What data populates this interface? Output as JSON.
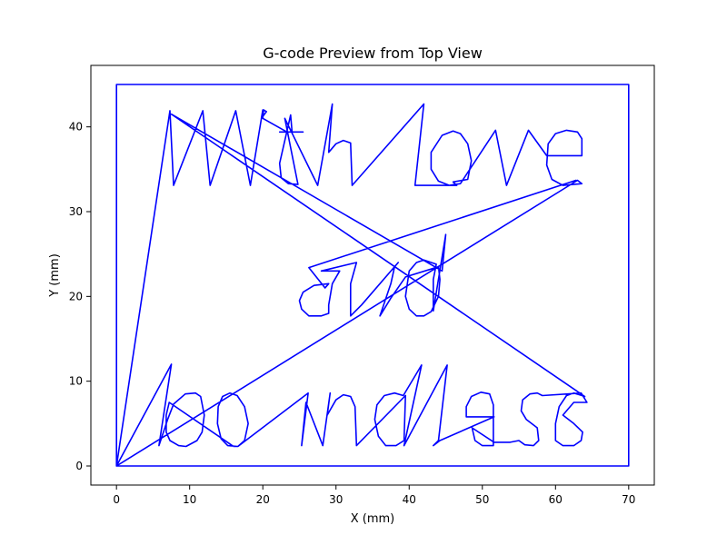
{
  "chart_data": {
    "type": "line",
    "title": "G-code Preview from Top View",
    "xlabel": "X (mm)",
    "ylabel": "Y (mm)",
    "xlim": [
      -3.5,
      73.5
    ],
    "ylim": [
      -2.25,
      47.25
    ],
    "x_ticks": [
      0,
      10,
      20,
      30,
      40,
      50,
      60,
      70
    ],
    "y_ticks": [
      0,
      10,
      20,
      30,
      40
    ],
    "grid": false,
    "line_color": "#0000ff",
    "series": [
      {
        "description": "toolpath",
        "points": [
          [
            0,
            0
          ],
          [
            0,
            45
          ],
          [
            70,
            45
          ],
          [
            70,
            0
          ],
          [
            0,
            0
          ],
          [
            7.3,
            41.9
          ],
          [
            7.8,
            33.1
          ],
          [
            11.8,
            41.9
          ],
          [
            12.8,
            33.1
          ],
          [
            16.3,
            41.9
          ],
          [
            18.3,
            33.1
          ],
          [
            20,
            42
          ],
          [
            19.8,
            41
          ],
          [
            20.5,
            41.8
          ],
          [
            20.1,
            42
          ],
          [
            20,
            41
          ],
          [
            23.3,
            39.4
          ],
          [
            22.3,
            39.4
          ],
          [
            25.5,
            39.4
          ],
          [
            24,
            39.4
          ],
          [
            23.8,
            41.4
          ],
          [
            22.3,
            35.7
          ],
          [
            22.5,
            34
          ],
          [
            23.5,
            33.3
          ],
          [
            24.8,
            33.2
          ],
          [
            23,
            41
          ],
          [
            27.5,
            33.1
          ],
          [
            29.5,
            42.7
          ],
          [
            29,
            37
          ],
          [
            30,
            38
          ],
          [
            31,
            38.4
          ],
          [
            32,
            38.1
          ],
          [
            32.2,
            33.1
          ],
          [
            42,
            42.7
          ],
          [
            40.8,
            33.1
          ],
          [
            46.5,
            33.1
          ],
          [
            46,
            33.5
          ],
          [
            48,
            33.8
          ],
          [
            48.5,
            36
          ],
          [
            48,
            38
          ],
          [
            47,
            39.2
          ],
          [
            46,
            39.5
          ],
          [
            44.5,
            39
          ],
          [
            43,
            37
          ],
          [
            43,
            35
          ],
          [
            44,
            33.6
          ],
          [
            45.5,
            33.1
          ],
          [
            47,
            33.3
          ],
          [
            51.8,
            39.6
          ],
          [
            53.3,
            33.1
          ],
          [
            56.3,
            39.6
          ],
          [
            58.8,
            36.6
          ],
          [
            63.6,
            36.6
          ],
          [
            63.6,
            38.6
          ],
          [
            63,
            39.4
          ],
          [
            61.5,
            39.6
          ],
          [
            60,
            39.2
          ],
          [
            59,
            38
          ],
          [
            58.8,
            35.5
          ],
          [
            59.5,
            33.8
          ],
          [
            61,
            33.1
          ],
          [
            63.6,
            33.3
          ],
          [
            63,
            33.7
          ],
          [
            0,
            0
          ],
          [
            7.5,
            12
          ],
          [
            5.8,
            2.4
          ],
          [
            7,
            5.5
          ],
          [
            7.8,
            7.3
          ],
          [
            9.4,
            8.5
          ],
          [
            10.8,
            8.6
          ],
          [
            11.5,
            8.2
          ],
          [
            12,
            6
          ],
          [
            11.7,
            4
          ],
          [
            11,
            3
          ],
          [
            9.5,
            2.3
          ],
          [
            8.5,
            2.4
          ],
          [
            7.3,
            3
          ],
          [
            6.8,
            4
          ],
          [
            6.8,
            6
          ],
          [
            7.2,
            7.5
          ],
          [
            16,
            2.3
          ],
          [
            16.6,
            2.3
          ],
          [
            17.5,
            3
          ],
          [
            18,
            5
          ],
          [
            17.5,
            7
          ],
          [
            16.5,
            8.3
          ],
          [
            15.5,
            8.6
          ],
          [
            14.5,
            8.2
          ],
          [
            13.9,
            7
          ],
          [
            13.8,
            5
          ],
          [
            14.3,
            3.2
          ],
          [
            15.2,
            2.4
          ],
          [
            16.6,
            2.3
          ],
          [
            26.2,
            8.6
          ],
          [
            25.3,
            2.4
          ],
          [
            25.9,
            7.5
          ],
          [
            28.2,
            2.4
          ],
          [
            29.2,
            8.6
          ],
          [
            28.8,
            6
          ],
          [
            30,
            7.8
          ],
          [
            31,
            8.4
          ],
          [
            32,
            8.2
          ],
          [
            32.6,
            7
          ],
          [
            32.8,
            2.4
          ],
          [
            39.5,
            8.3
          ],
          [
            39.3,
            3
          ],
          [
            38.2,
            2.4
          ],
          [
            36.8,
            2.4
          ],
          [
            35.8,
            3.5
          ],
          [
            35.3,
            5.5
          ],
          [
            35.6,
            7.2
          ],
          [
            36.6,
            8.3
          ],
          [
            38,
            8.6
          ],
          [
            39.2,
            8.3
          ],
          [
            41.7,
            11.9
          ],
          [
            39.3,
            2.4
          ],
          [
            45.2,
            11.9
          ],
          [
            44,
            3
          ],
          [
            43.3,
            2.4
          ],
          [
            44.2,
            3
          ],
          [
            51.6,
            5.8
          ],
          [
            47.8,
            5.8
          ],
          [
            47.8,
            7
          ],
          [
            48.5,
            8.2
          ],
          [
            49.8,
            8.7
          ],
          [
            51,
            8.5
          ],
          [
            51.5,
            7.2
          ],
          [
            51.5,
            5.8
          ],
          [
            51.5,
            2.4
          ],
          [
            50,
            2.4
          ],
          [
            49,
            3
          ],
          [
            48.6,
            4.5
          ],
          [
            51.6,
            2.8
          ],
          [
            53.8,
            2.8
          ],
          [
            55,
            3
          ],
          [
            55.8,
            2.5
          ],
          [
            57,
            2.4
          ],
          [
            57.7,
            3
          ],
          [
            57.5,
            4.5
          ],
          [
            56,
            5.5
          ],
          [
            55.3,
            6.5
          ],
          [
            55.5,
            7.8
          ],
          [
            56.5,
            8.5
          ],
          [
            57.5,
            8.6
          ],
          [
            58.2,
            8.3
          ],
          [
            63.5,
            8.6
          ],
          [
            64.3,
            7.5
          ],
          [
            62.5,
            7.5
          ],
          [
            61,
            6
          ],
          [
            62.5,
            5
          ],
          [
            63.7,
            4
          ],
          [
            63.5,
            3
          ],
          [
            62.5,
            2.4
          ],
          [
            61,
            2.4
          ],
          [
            60,
            3
          ],
          [
            60,
            4
          ],
          [
            60,
            5
          ],
          [
            60.5,
            7
          ],
          [
            61.5,
            8.3
          ],
          [
            62.5,
            8.6
          ],
          [
            64,
            8.2
          ],
          [
            7.5,
            41.5
          ],
          [
            44.5,
            23
          ],
          [
            45,
            27.3
          ],
          [
            43.3,
            18.3
          ],
          [
            43.3,
            22
          ],
          [
            43.7,
            23.8
          ],
          [
            42,
            24.3
          ],
          [
            41,
            24
          ],
          [
            40,
            23
          ],
          [
            39.5,
            20
          ],
          [
            40,
            18.5
          ],
          [
            41,
            17.7
          ],
          [
            42,
            17.7
          ],
          [
            43,
            18.2
          ],
          [
            44,
            20
          ],
          [
            44.2,
            22
          ],
          [
            44,
            23.5
          ],
          [
            39.5,
            22.3
          ],
          [
            37.5,
            19.8
          ],
          [
            36,
            17.7
          ],
          [
            37.5,
            21.5
          ],
          [
            38,
            23.5
          ],
          [
            38.5,
            24
          ],
          [
            33.5,
            19
          ],
          [
            32,
            17.7
          ],
          [
            32,
            21.5
          ],
          [
            32.8,
            24
          ],
          [
            28,
            23
          ],
          [
            30.5,
            23
          ],
          [
            29.5,
            21.5
          ],
          [
            29,
            19
          ],
          [
            29,
            18
          ],
          [
            28,
            17.7
          ],
          [
            26.3,
            17.7
          ],
          [
            25.3,
            18.5
          ],
          [
            25,
            19.5
          ],
          [
            25.5,
            20.5
          ],
          [
            27,
            21.3
          ],
          [
            29,
            21.5
          ],
          [
            28.5,
            21
          ],
          [
            26.3,
            23.4
          ],
          [
            62.8,
            33.7
          ]
        ]
      }
    ]
  }
}
